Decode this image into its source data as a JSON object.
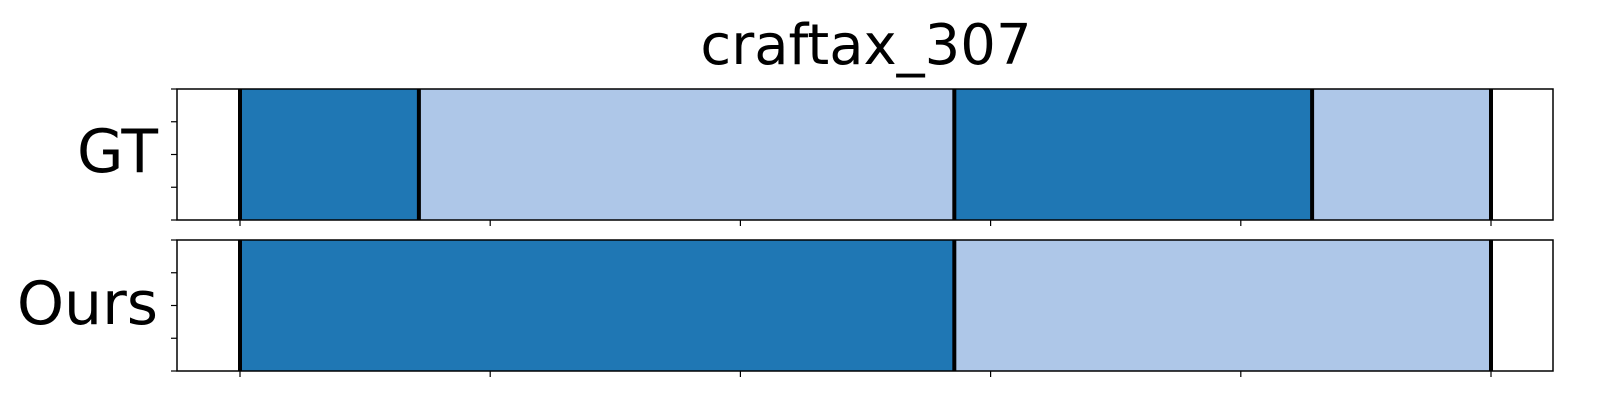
{
  "chart_data": {
    "type": "segmentation",
    "title": "craftax_307",
    "x_range": [
      0,
      1
    ],
    "rows": [
      {
        "label": "GT",
        "segments": [
          {
            "start": 0.0,
            "end": 0.143,
            "color": "#1f77b4"
          },
          {
            "start": 0.143,
            "end": 0.571,
            "color": "#aec7e8"
          },
          {
            "start": 0.571,
            "end": 0.857,
            "color": "#1f77b4"
          },
          {
            "start": 0.857,
            "end": 1.0,
            "color": "#aec7e8"
          }
        ],
        "boundaries": [
          0.0,
          0.143,
          0.571,
          0.857,
          1.0
        ]
      },
      {
        "label": "Ours",
        "segments": [
          {
            "start": 0.0,
            "end": 0.571,
            "color": "#1f77b4"
          },
          {
            "start": 0.571,
            "end": 1.0,
            "color": "#aec7e8"
          }
        ],
        "boundaries": [
          0.0,
          0.571,
          1.0
        ]
      }
    ],
    "x_ticks": [
      0.0,
      0.2,
      0.4,
      0.6,
      0.8,
      1.0
    ],
    "tick_labels_visible": false
  }
}
